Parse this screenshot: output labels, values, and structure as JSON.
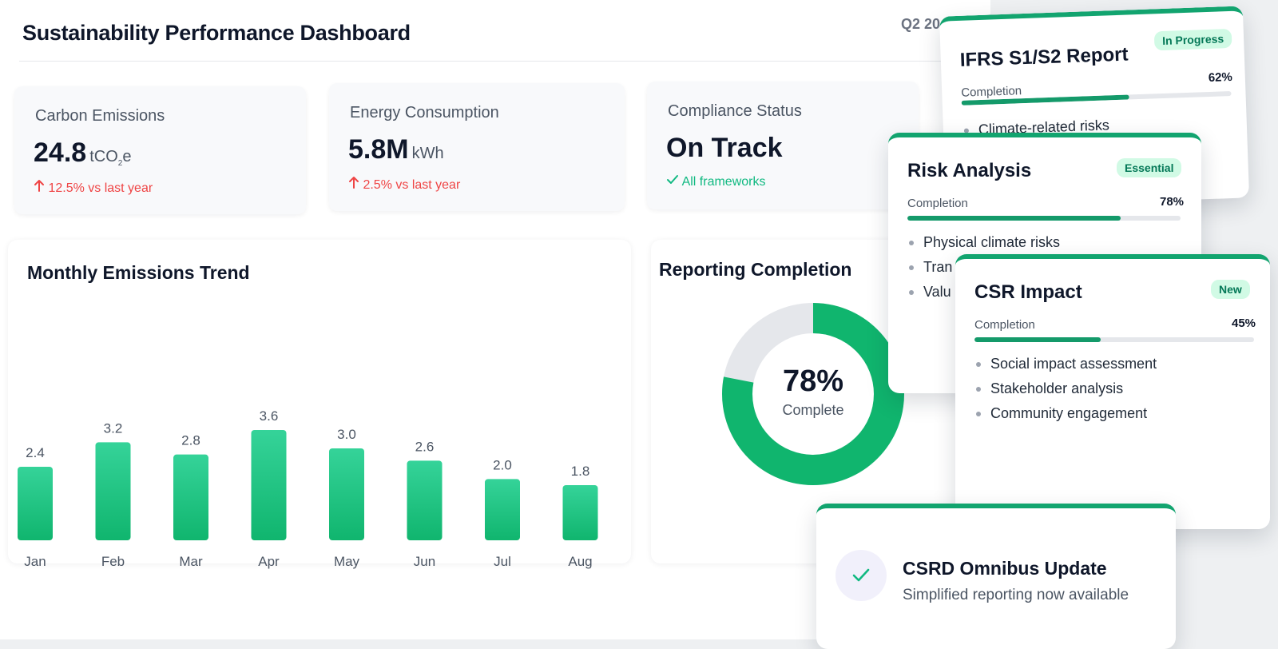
{
  "header": {
    "title": "Sustainability Performance Dashboard",
    "period": "Q2 20"
  },
  "stats": [
    {
      "label": "Carbon Emissions",
      "value": "24.8",
      "unit": "tCO",
      "unit_sub": "2",
      "unit_suffix": "e",
      "change": "12.5% vs last year",
      "direction": "up"
    },
    {
      "label": "Energy Consumption",
      "value": "5.8M",
      "unit": "kWh",
      "change": "2.5% vs last year",
      "direction": "up"
    },
    {
      "label": "Compliance Status",
      "value": "On Track",
      "note": "All frameworks",
      "status": "ok"
    }
  ],
  "emissions_card": {
    "title": "Monthly Emissions Trend"
  },
  "completion_card": {
    "title": "Reporting Completion",
    "percent_label": "78%",
    "sub_label": "Complete"
  },
  "chart_data": [
    {
      "type": "bar",
      "title": "Monthly Emissions Trend",
      "categories": [
        "Jan",
        "Feb",
        "Mar",
        "Apr",
        "May",
        "Jun",
        "Jul",
        "Aug"
      ],
      "values": [
        2.4,
        3.2,
        2.8,
        3.6,
        3.0,
        2.6,
        2.0,
        1.8
      ],
      "value_labels": [
        "2.4",
        "3.2",
        "2.8",
        "3.6",
        "3.0",
        "2.6",
        "2.0",
        "1.8"
      ],
      "ylim": [
        0,
        3.6
      ],
      "grid": false
    },
    {
      "type": "pie",
      "title": "Reporting Completion",
      "style": "donut",
      "values": [
        78,
        22
      ],
      "center_label": "78%",
      "center_sublabel": "Complete"
    }
  ],
  "report_cards": [
    {
      "title": "IFRS S1/S2 Report",
      "badge": "In Progress",
      "completion_label": "Completion",
      "percent_label": "62%",
      "progress": 0.62,
      "items": [
        "Climate-related risks"
      ]
    },
    {
      "title": "Risk Analysis",
      "badge": "Essential",
      "completion_label": "Completion",
      "percent_label": "78%",
      "progress": 0.78,
      "items": [
        "Physical climate risks",
        "Tran",
        "Valu"
      ]
    },
    {
      "title": "CSR Impact",
      "badge": "New",
      "completion_label": "Completion",
      "percent_label": "45%",
      "progress": 0.45,
      "items": [
        "Social impact assessment",
        "Stakeholder analysis",
        "Community engagement"
      ]
    }
  ],
  "update": {
    "title": "CSRD Omnibus Update",
    "subtitle": "Simplified reporting now available"
  },
  "colors": {
    "accent": "#12a46f",
    "bar_top": "#35d399",
    "bar_bottom": "#10b56e",
    "donut_track": "#e5e7eb",
    "negative": "#ef4444",
    "positive": "#10b981",
    "badge_bg": "#d1fae5"
  },
  "icons": {
    "trend_up": "arrow-up-icon",
    "status_ok": "check-icon",
    "update": "check-circle-icon"
  }
}
